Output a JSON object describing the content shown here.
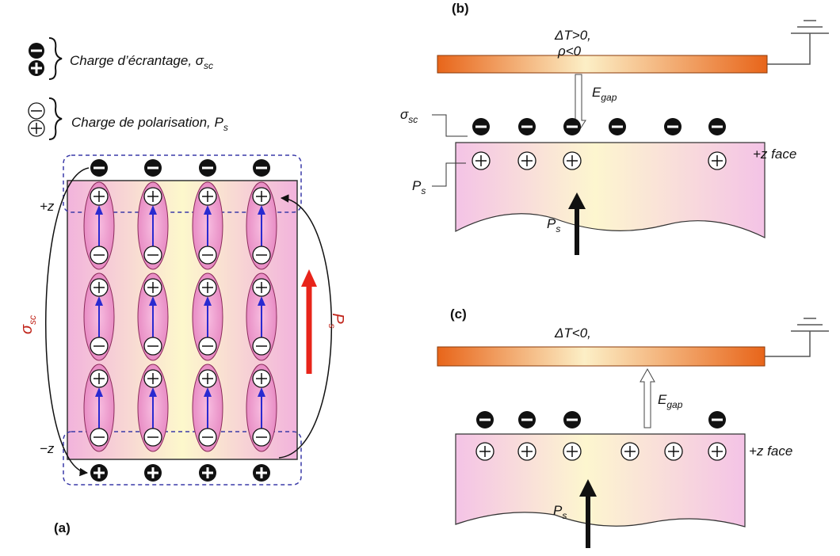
{
  "legend": [
    {
      "text": "Charge d’écrantage, σ",
      "sub": "sc"
    },
    {
      "text": "Charge de polarisation, P",
      "sub": "s"
    }
  ],
  "panel_a": {
    "label": "(a)",
    "top": "+z",
    "bottom": "−z",
    "screening": {
      "text": "σ",
      "sub": "sc"
    },
    "polarisation": {
      "text": "P",
      "sub": "s"
    }
  },
  "panel_b": {
    "label": "(b)",
    "condition1": "ΔT>0,",
    "condition2": "ρ<0",
    "field": {
      "text": "E",
      "sub": "gap"
    },
    "screening": {
      "text": "σ",
      "sub": "sc"
    },
    "polarisation_label": {
      "text": "P",
      "sub": "s"
    },
    "polarisation": {
      "text": "P",
      "sub": "s"
    },
    "face": "+z face"
  },
  "panel_c": {
    "label": "(c)",
    "condition": "ΔT<0,",
    "field": {
      "text": "E",
      "sub": "gap"
    },
    "polarisation": {
      "text": "P",
      "sub": "s"
    },
    "face": "+z face"
  }
}
